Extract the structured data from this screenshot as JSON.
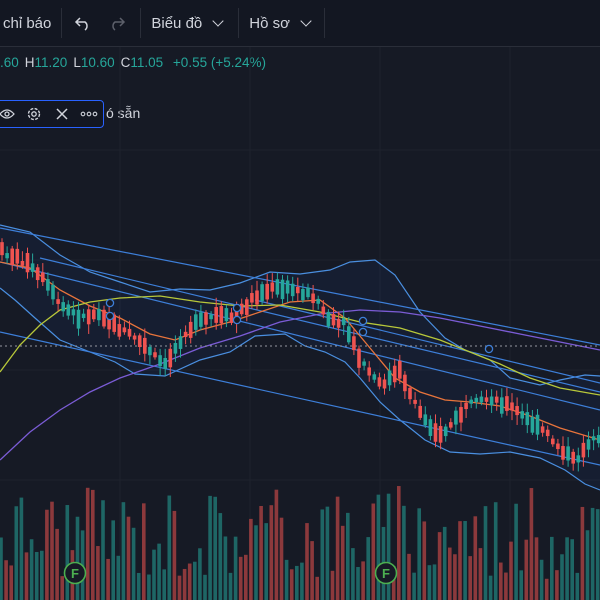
{
  "toolbar": {
    "indicators_label": "chỉ báo",
    "chart_label": "Biểu đồ",
    "profile_label": "Hồ sơ",
    "undo_icon": "undo-icon",
    "redo_icon": "redo-icon"
  },
  "ohlc": {
    "open_value": ".60",
    "high_key": "H",
    "high_value": "11.20",
    "low_key": "L",
    "low_value": "10.60",
    "close_key": "C",
    "close_value": "11.05",
    "change": "+0.55 (+5.24%)"
  },
  "indicator_toolbox": {
    "label": "ó sẵn",
    "icons": [
      "eye-icon",
      "gear-icon",
      "close-icon",
      "more-icon"
    ]
  },
  "markers": [
    {
      "label": "F"
    },
    {
      "label": "F"
    }
  ],
  "colors": {
    "background": "#161a25",
    "up": "#26a69a",
    "down": "#ef5350",
    "channel": "#3d7fd9",
    "bollinger": "#4a8fe0",
    "ma_fast": "#e8743b",
    "ma_mid": "#b8c83a",
    "ma_slow": "#7b5cd6",
    "accent": "#2962ff"
  }
}
